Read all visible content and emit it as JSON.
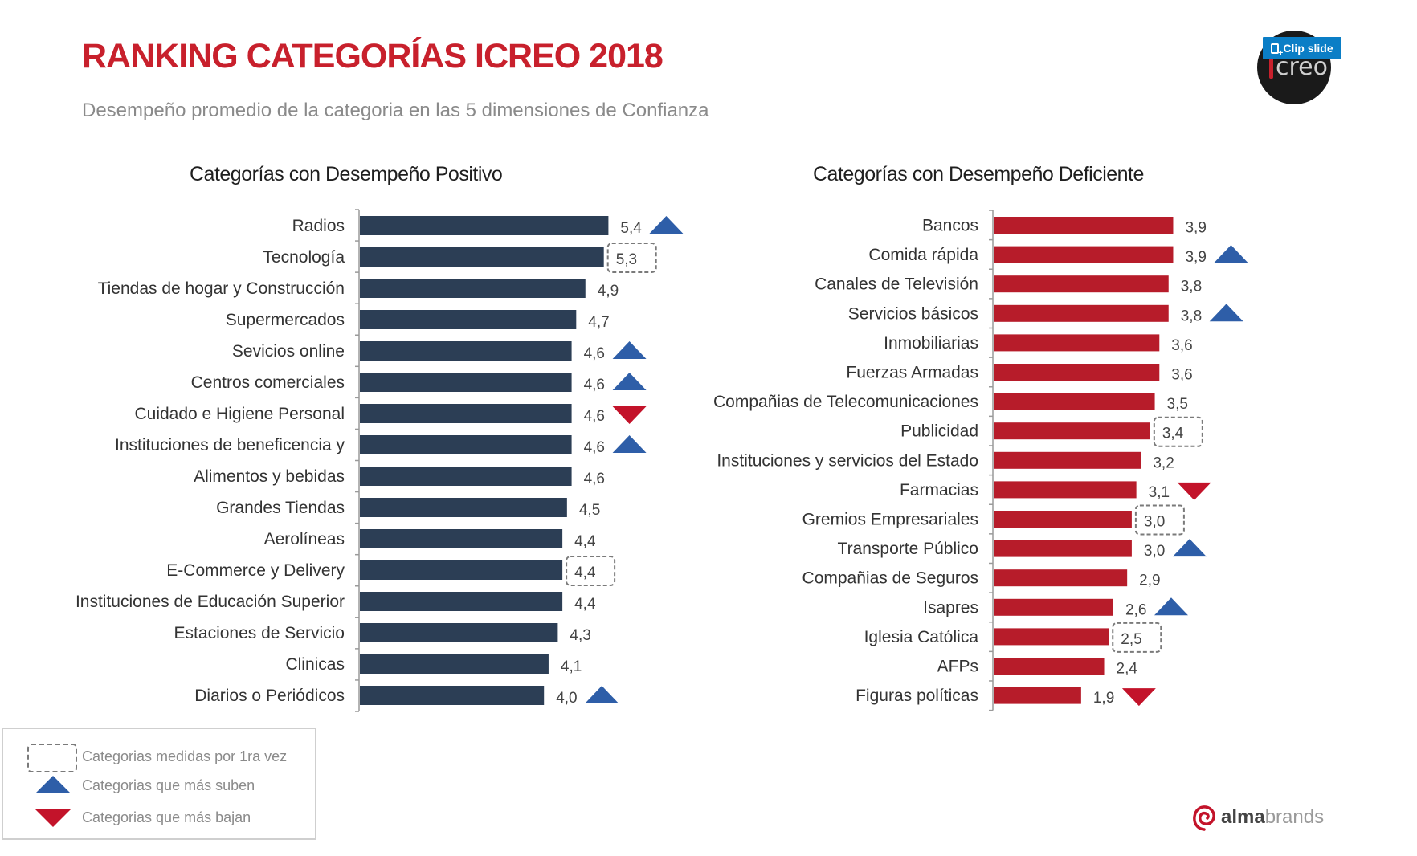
{
  "header": {
    "title": "RANKING CATEGORÍAS ICREO 2018",
    "subtitle": "Desempeño promedio de la categoria en las 5 dimensiones de Confianza"
  },
  "logo": {
    "text": "creo",
    "clip_button_label": "Clip slide"
  },
  "brand": {
    "bold": "alma",
    "light": "brands"
  },
  "colors": {
    "title": "#c8202c",
    "positive_bar": "#2c3e55",
    "negative_bar": "#b71c2a",
    "up_marker": "#2e5ea8",
    "down_marker": "#c3132a"
  },
  "legend": {
    "items": [
      {
        "marker": "dashed-box",
        "label": "Categorias medidas por 1ra vez"
      },
      {
        "marker": "up-triangle",
        "label": "Categorias que más suben"
      },
      {
        "marker": "down-triangle",
        "label": "Categorias que más bajan"
      }
    ]
  },
  "chart_data": [
    {
      "type": "bar",
      "orientation": "horizontal",
      "title": "Categorías con Desempeño Positivo",
      "xlabel": "",
      "ylabel": "",
      "xlim": [
        0,
        5.4
      ],
      "grid": false,
      "categories": [
        "Radios",
        "Tecnología",
        "Tiendas de hogar y Construcción",
        "Supermercados",
        "Sevicios online",
        "Centros comerciales",
        "Cuidado e Higiene Personal",
        "Instituciones de beneficencia y",
        "Alimentos y bebidas",
        "Grandes Tiendas",
        "Aerolíneas",
        "E-Commerce y Delivery",
        "Instituciones de Educación Superior",
        "Estaciones de Servicio",
        "Clinicas",
        "Diarios o Periódicos"
      ],
      "values": [
        5.4,
        5.3,
        4.9,
        4.7,
        4.6,
        4.6,
        4.6,
        4.6,
        4.6,
        4.5,
        4.4,
        4.4,
        4.4,
        4.3,
        4.1,
        4.0
      ],
      "value_labels": [
        "5,4",
        "5,3",
        "4,9",
        "4,7",
        "4,6",
        "4,6",
        "4,6",
        "4,6",
        "4,6",
        "4,5",
        "4,4",
        "4,4",
        "4,4",
        "4,3",
        "4,1",
        "4,0"
      ],
      "markers": [
        "up",
        "new",
        "",
        "",
        "up",
        "up",
        "down",
        "up",
        "",
        "",
        "",
        "new",
        "",
        "",
        "",
        "up"
      ]
    },
    {
      "type": "bar",
      "orientation": "horizontal",
      "title": "Categorías con Desempeño Deficiente",
      "xlabel": "",
      "ylabel": "",
      "xlim": [
        0,
        5.4
      ],
      "grid": false,
      "categories": [
        "Bancos",
        "Comida rápida",
        "Canales de Televisión",
        "Servicios básicos",
        "Inmobiliarias",
        "Fuerzas Armadas",
        "Compañias de Telecomunicaciones",
        "Publicidad",
        "Instituciones y servicios del Estado",
        "Farmacias",
        "Gremios Empresariales",
        "Transporte Público",
        "Compañias de Seguros",
        "Isapres",
        "Iglesia Católica",
        "AFPs",
        "Figuras políticas"
      ],
      "values": [
        3.9,
        3.9,
        3.8,
        3.8,
        3.6,
        3.6,
        3.5,
        3.4,
        3.2,
        3.1,
        3.0,
        3.0,
        2.9,
        2.6,
        2.5,
        2.4,
        1.9
      ],
      "value_labels": [
        "3,9",
        "3,9",
        "3,8",
        "3,8",
        "3,6",
        "3,6",
        "3,5",
        "3,4",
        "3,2",
        "3,1",
        "3,0",
        "3,0",
        "2,9",
        "2,6",
        "2,5",
        "2,4",
        "1,9"
      ],
      "markers": [
        "",
        "up",
        "",
        "up",
        "",
        "",
        "",
        "new",
        "",
        "down",
        "new",
        "up",
        "",
        "up",
        "new",
        "",
        "down"
      ]
    }
  ]
}
